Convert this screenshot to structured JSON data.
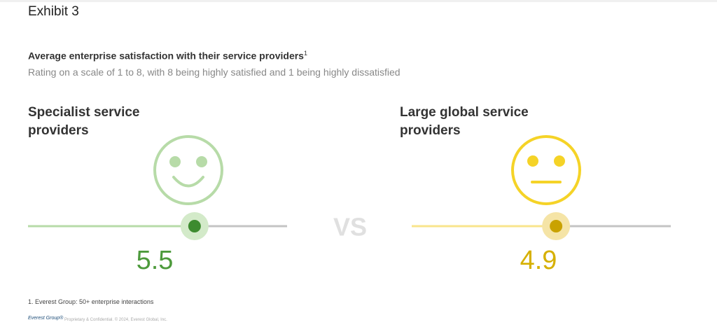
{
  "header": {
    "exhibit": "Exhibit 3",
    "title": "Average enterprise satisfaction with their service providers",
    "title_note": "1",
    "subtitle": "Rating on a scale of 1 to 8, with 8 being highly satisfied and 1 being highly dissatisfied"
  },
  "chart_data": [
    {
      "type": "slider",
      "title": "Specialist service providers",
      "value": 5.5,
      "xlim": [
        1,
        8
      ],
      "color": "#3d8b2f",
      "track_color": "#b7dba8",
      "halo_color": "#d3eac9",
      "label_color": "#4d9a3c"
    },
    {
      "type": "slider",
      "title": "Large global service providers",
      "value": 4.9,
      "xlim": [
        1,
        8
      ],
      "color": "#c9a200",
      "track_color": "#f9e58c",
      "halo_color": "#f5e4a6",
      "label_color": "#d6b000"
    }
  ],
  "vs": "VS",
  "footnote": "1. Everest Group: 50+ enterprise interactions",
  "footer": {
    "logo": "Everest Group®",
    "legal": "Proprietary & Confidential. © 2024, Everest Global, Inc."
  }
}
